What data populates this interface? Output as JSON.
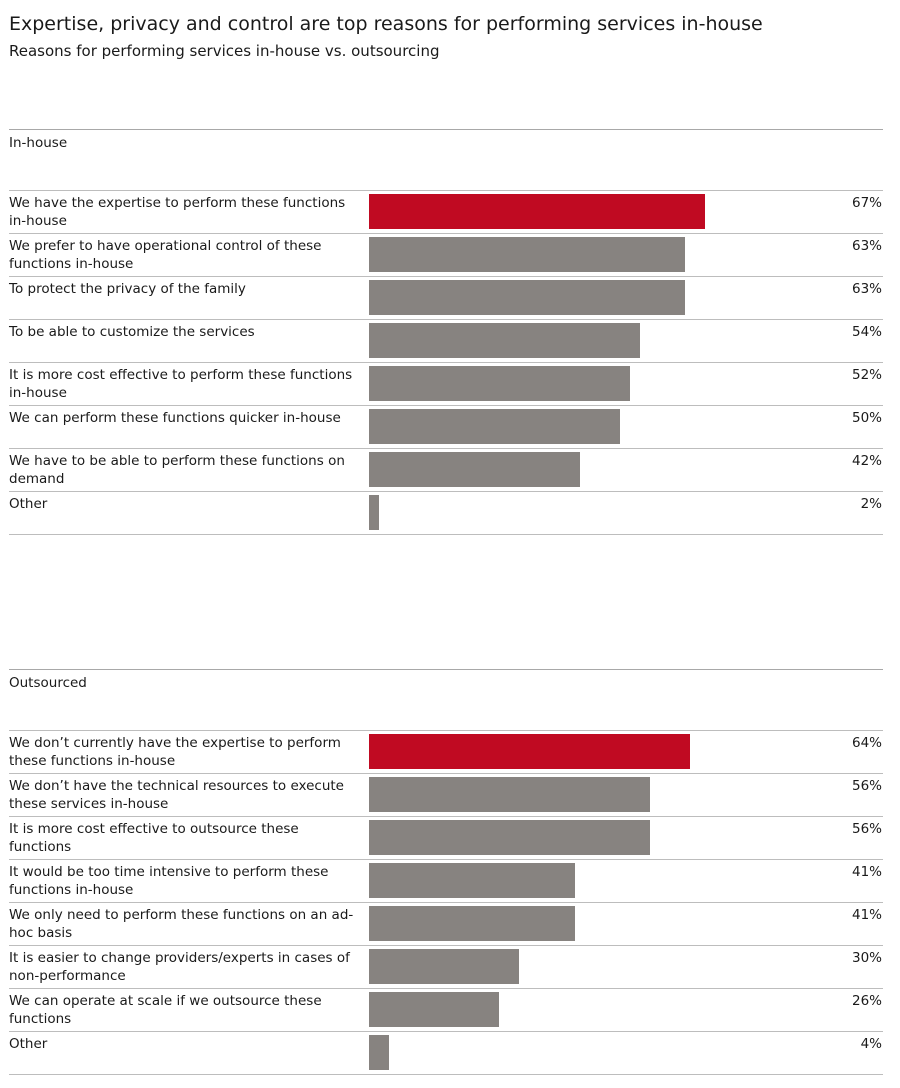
{
  "header": {
    "title": "Expertise, privacy and control are top reasons for performing services in-house",
    "subtitle": "Reasons for performing services in-house vs. outsourcing"
  },
  "colors": {
    "highlight": "#c00a22",
    "bar": "#878380"
  },
  "chart_data": {
    "type": "bar",
    "orientation": "horizontal",
    "title": "Expertise, privacy and control are top reasons for performing services in-house",
    "subtitle": "Reasons for performing services in-house vs. outsourcing",
    "unit": "%",
    "xlim": [
      0,
      100
    ],
    "panels": [
      {
        "name": "In-house",
        "categories": [
          "We have the expertise to perform these functions in-house",
          "We prefer to have operational control of these functions in-house",
          "To protect the privacy of the family",
          "To be able to customize the services",
          "It is more cost effective to perform these functions in-house",
          "We can perform these functions quicker in-house",
          "We have to be able to perform these functions on demand",
          "Other"
        ],
        "values": [
          67,
          63,
          63,
          54,
          52,
          50,
          42,
          2
        ],
        "labels": [
          "67%",
          "63%",
          "63%",
          "54%",
          "52%",
          "50%",
          "42%",
          "2%"
        ],
        "highlight_index": 0
      },
      {
        "name": "Outsourced",
        "categories": [
          "We don’t currently have the expertise to perform these functions in-house",
          "We don’t have the technical resources to execute these services in-house",
          "It is more cost effective to outsource these functions",
          "It would be too time intensive to perform these functions in-house",
          "We only need to perform these functions on an ad-hoc basis",
          "It is easier to change providers/experts in cases of non-performance",
          "We can operate at scale if we outsource these functions",
          "Other"
        ],
        "values": [
          64,
          56,
          56,
          41,
          41,
          30,
          26,
          4
        ],
        "labels": [
          "64%",
          "56%",
          "56%",
          "41%",
          "41%",
          "30%",
          "26%",
          "4%"
        ],
        "highlight_index": 0
      }
    ]
  }
}
